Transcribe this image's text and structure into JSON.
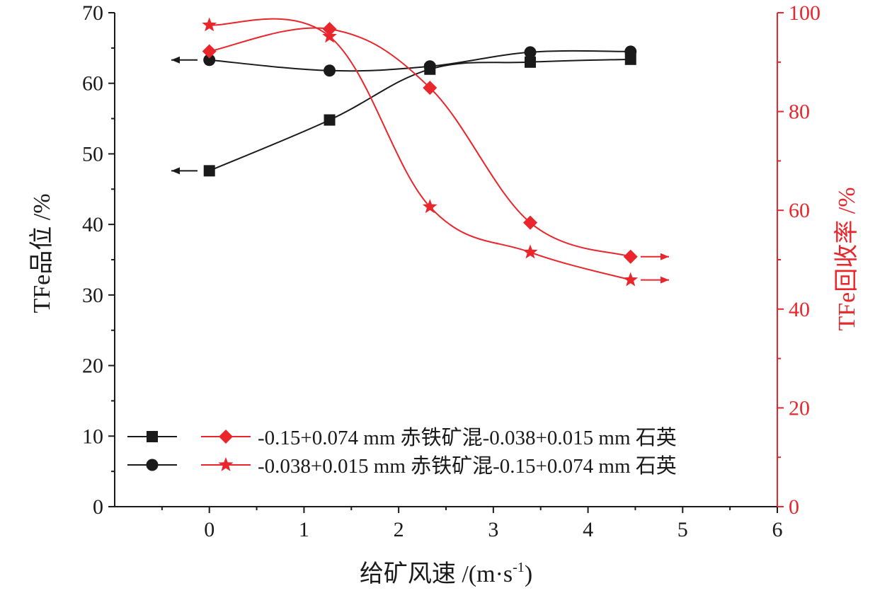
{
  "chart_data": {
    "type": "scatter",
    "xlabel_main": "给矿风速",
    "xlabel_unit": " /(m·s",
    "xlabel_sup": "-1",
    "xlabel_close": ")",
    "ylabel_left": "TFe品位 /%",
    "ylabel_right": "TFe回收率 /%",
    "xlim": [
      -1,
      6
    ],
    "ylim_left": [
      0,
      70
    ],
    "ylim_right": [
      0,
      100
    ],
    "x_ticks": [
      "0",
      "1",
      "2",
      "3",
      "4",
      "5",
      "6"
    ],
    "y_left_ticks": [
      "0",
      "10",
      "20",
      "30",
      "40",
      "50",
      "60",
      "70"
    ],
    "y_right_ticks": [
      "0",
      "20",
      "40",
      "60",
      "80",
      "100"
    ],
    "grid": false,
    "legend_position": "bottom-left",
    "colors": {
      "black": "#1a1a1a",
      "red": "#e8262b"
    },
    "series": [
      {
        "axis": "left",
        "marker": "square",
        "color": "#1a1a1a",
        "x": [
          0,
          1.27,
          2.33,
          3.39,
          4.45
        ],
        "y": [
          47.6,
          54.8,
          62.0,
          63.0,
          63.4
        ]
      },
      {
        "axis": "left",
        "marker": "circle",
        "color": "#1a1a1a",
        "x": [
          0,
          1.27,
          2.33,
          3.39,
          4.45
        ],
        "y": [
          63.3,
          61.8,
          62.4,
          64.4,
          64.5
        ]
      },
      {
        "axis": "right",
        "marker": "diamond",
        "color": "#e8262b",
        "x": [
          0,
          1.27,
          2.33,
          3.39,
          4.45
        ],
        "y": [
          92.2,
          96.7,
          84.8,
          57.5,
          50.6
        ]
      },
      {
        "axis": "right",
        "marker": "star",
        "color": "#e8262b",
        "x": [
          0,
          1.27,
          2.33,
          3.39,
          4.45
        ],
        "y": [
          97.5,
          95.2,
          60.7,
          51.5,
          45.9
        ]
      }
    ],
    "legend": [
      {
        "label": "-0.15+0.074 mm 赤铁矿混-0.038+0.015 mm 石英"
      },
      {
        "label": "-0.038+0.015 mm 赤铁矿混-0.15+0.074 mm 石英"
      }
    ]
  }
}
